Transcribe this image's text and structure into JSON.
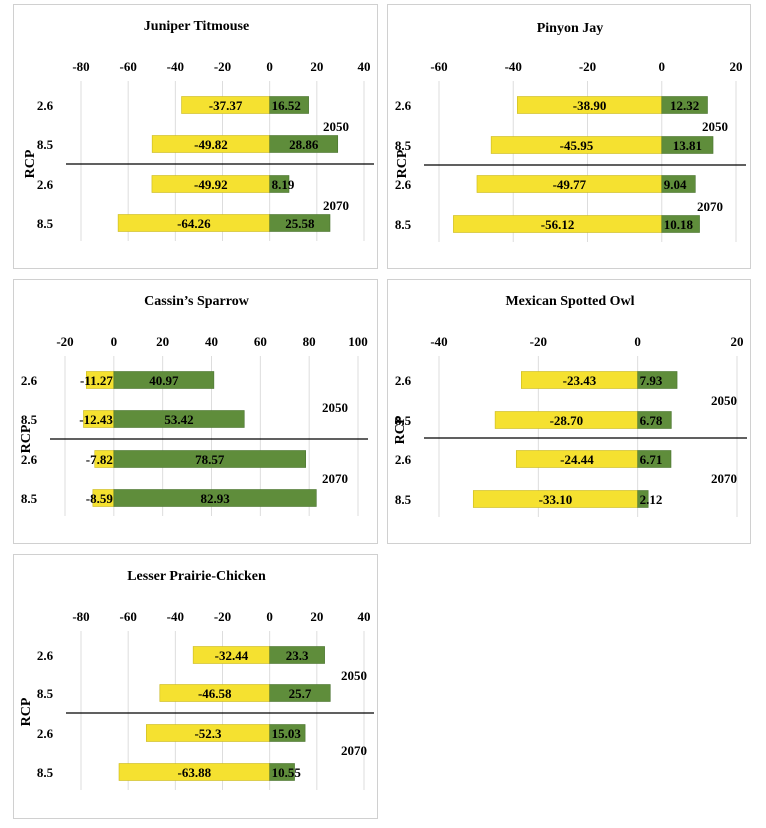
{
  "colors": {
    "negative": "#f5e130",
    "positive": "#5f8d3b",
    "negative_stroke": "#c9b81e",
    "positive_stroke": "#4a7330",
    "grid": "#dddddd",
    "divider": "#000000"
  },
  "chart_data": [
    {
      "type": "bar",
      "orientation": "horizontal",
      "title": "Juniper Titmouse",
      "ylabel": "RCP",
      "xlim": [
        -80,
        40
      ],
      "xticks": [
        -80,
        -60,
        -40,
        -20,
        0,
        20,
        40
      ],
      "xtick_labels": [
        "-80",
        "-60",
        "-40",
        "-20",
        "0",
        "20",
        "40"
      ],
      "categories": [
        "2.6",
        "8.5",
        "2.6",
        "8.5"
      ],
      "period_labels": [
        "2050",
        "2070"
      ],
      "negative_values": [
        -37.37,
        -49.82,
        -49.92,
        -64.26
      ],
      "positive_values": [
        16.52,
        28.86,
        8.19,
        25.58
      ],
      "negative_labels": [
        "-37.37",
        "-49.82",
        "-49.92",
        "-64.26"
      ],
      "positive_labels": [
        "16.52",
        "28.86",
        "8.19",
        "25.58"
      ]
    },
    {
      "type": "bar",
      "orientation": "horizontal",
      "title": "Pinyon Jay",
      "ylabel": "RCP",
      "xlim": [
        -60,
        20
      ],
      "xticks": [
        -60,
        -40,
        -20,
        0,
        20
      ],
      "xtick_labels": [
        "-60",
        "-40",
        "-20",
        "0",
        "20"
      ],
      "categories": [
        "2.6",
        "8.5",
        "2.6",
        "8.5"
      ],
      "period_labels": [
        "2050",
        "2070"
      ],
      "negative_values": [
        -38.9,
        -45.95,
        -49.77,
        -56.12
      ],
      "positive_values": [
        12.32,
        13.81,
        9.04,
        10.18
      ],
      "negative_labels": [
        "-38.90",
        "-45.95",
        "-49.77",
        "-56.12"
      ],
      "positive_labels": [
        "12.32",
        "13.81",
        "9.04",
        "10.18"
      ]
    },
    {
      "type": "bar",
      "orientation": "horizontal",
      "title": "Cassin’s Sparrow",
      "ylabel": "RCP",
      "xlim": [
        -20,
        100
      ],
      "xticks": [
        -20,
        0,
        20,
        40,
        60,
        80,
        100
      ],
      "xtick_labels": [
        "-20",
        "0",
        "20",
        "40",
        "60",
        "80",
        "100"
      ],
      "categories": [
        "2.6",
        "8.5",
        "2.6",
        "8.5"
      ],
      "period_labels": [
        "2050",
        "2070"
      ],
      "negative_values": [
        -11.27,
        -12.43,
        -7.82,
        -8.59
      ],
      "positive_values": [
        40.97,
        53.42,
        78.57,
        82.93
      ],
      "negative_labels": [
        "-11.27",
        "-12.43",
        "-7.82",
        "-8.59"
      ],
      "positive_labels": [
        "40.97",
        "53.42",
        "78.57",
        "82.93"
      ]
    },
    {
      "type": "bar",
      "orientation": "horizontal",
      "title": "Mexican Spotted Owl",
      "ylabel": "RCP",
      "xlim": [
        -40,
        20
      ],
      "xticks": [
        -40,
        -20,
        0,
        20
      ],
      "xtick_labels": [
        "-40",
        "-20",
        "0",
        "20"
      ],
      "categories": [
        "2.6",
        "8.5",
        "2.6",
        "8.5"
      ],
      "period_labels": [
        "2050",
        "2070"
      ],
      "negative_values": [
        -23.43,
        -28.7,
        -24.44,
        -33.1
      ],
      "positive_values": [
        7.93,
        6.78,
        6.71,
        2.12
      ],
      "negative_labels": [
        "-23.43",
        "-28.70",
        "-24.44",
        "-33.10"
      ],
      "positive_labels": [
        "7.93",
        "6.78",
        "6.71",
        "2.12"
      ]
    },
    {
      "type": "bar",
      "orientation": "horizontal",
      "title": "Lesser Prairie-Chicken",
      "ylabel": "RCP",
      "xlim": [
        -80,
        40
      ],
      "xticks": [
        -80,
        -60,
        -40,
        -20,
        0,
        20,
        40
      ],
      "xtick_labels": [
        "-80",
        "-60",
        "-40",
        "-20",
        "0",
        "20",
        "40"
      ],
      "categories": [
        "2.6",
        "8.5",
        "2.6",
        "8.5"
      ],
      "period_labels": [
        "2050",
        "2070"
      ],
      "negative_values": [
        -32.44,
        -46.58,
        -52.3,
        -63.88
      ],
      "positive_values": [
        23.3,
        25.7,
        15.03,
        10.55
      ],
      "negative_labels": [
        "-32.44",
        "-46.58",
        "-52.3",
        "-63.88"
      ],
      "positive_labels": [
        "23.3",
        "25.7",
        "15.03",
        "10.55"
      ]
    }
  ]
}
